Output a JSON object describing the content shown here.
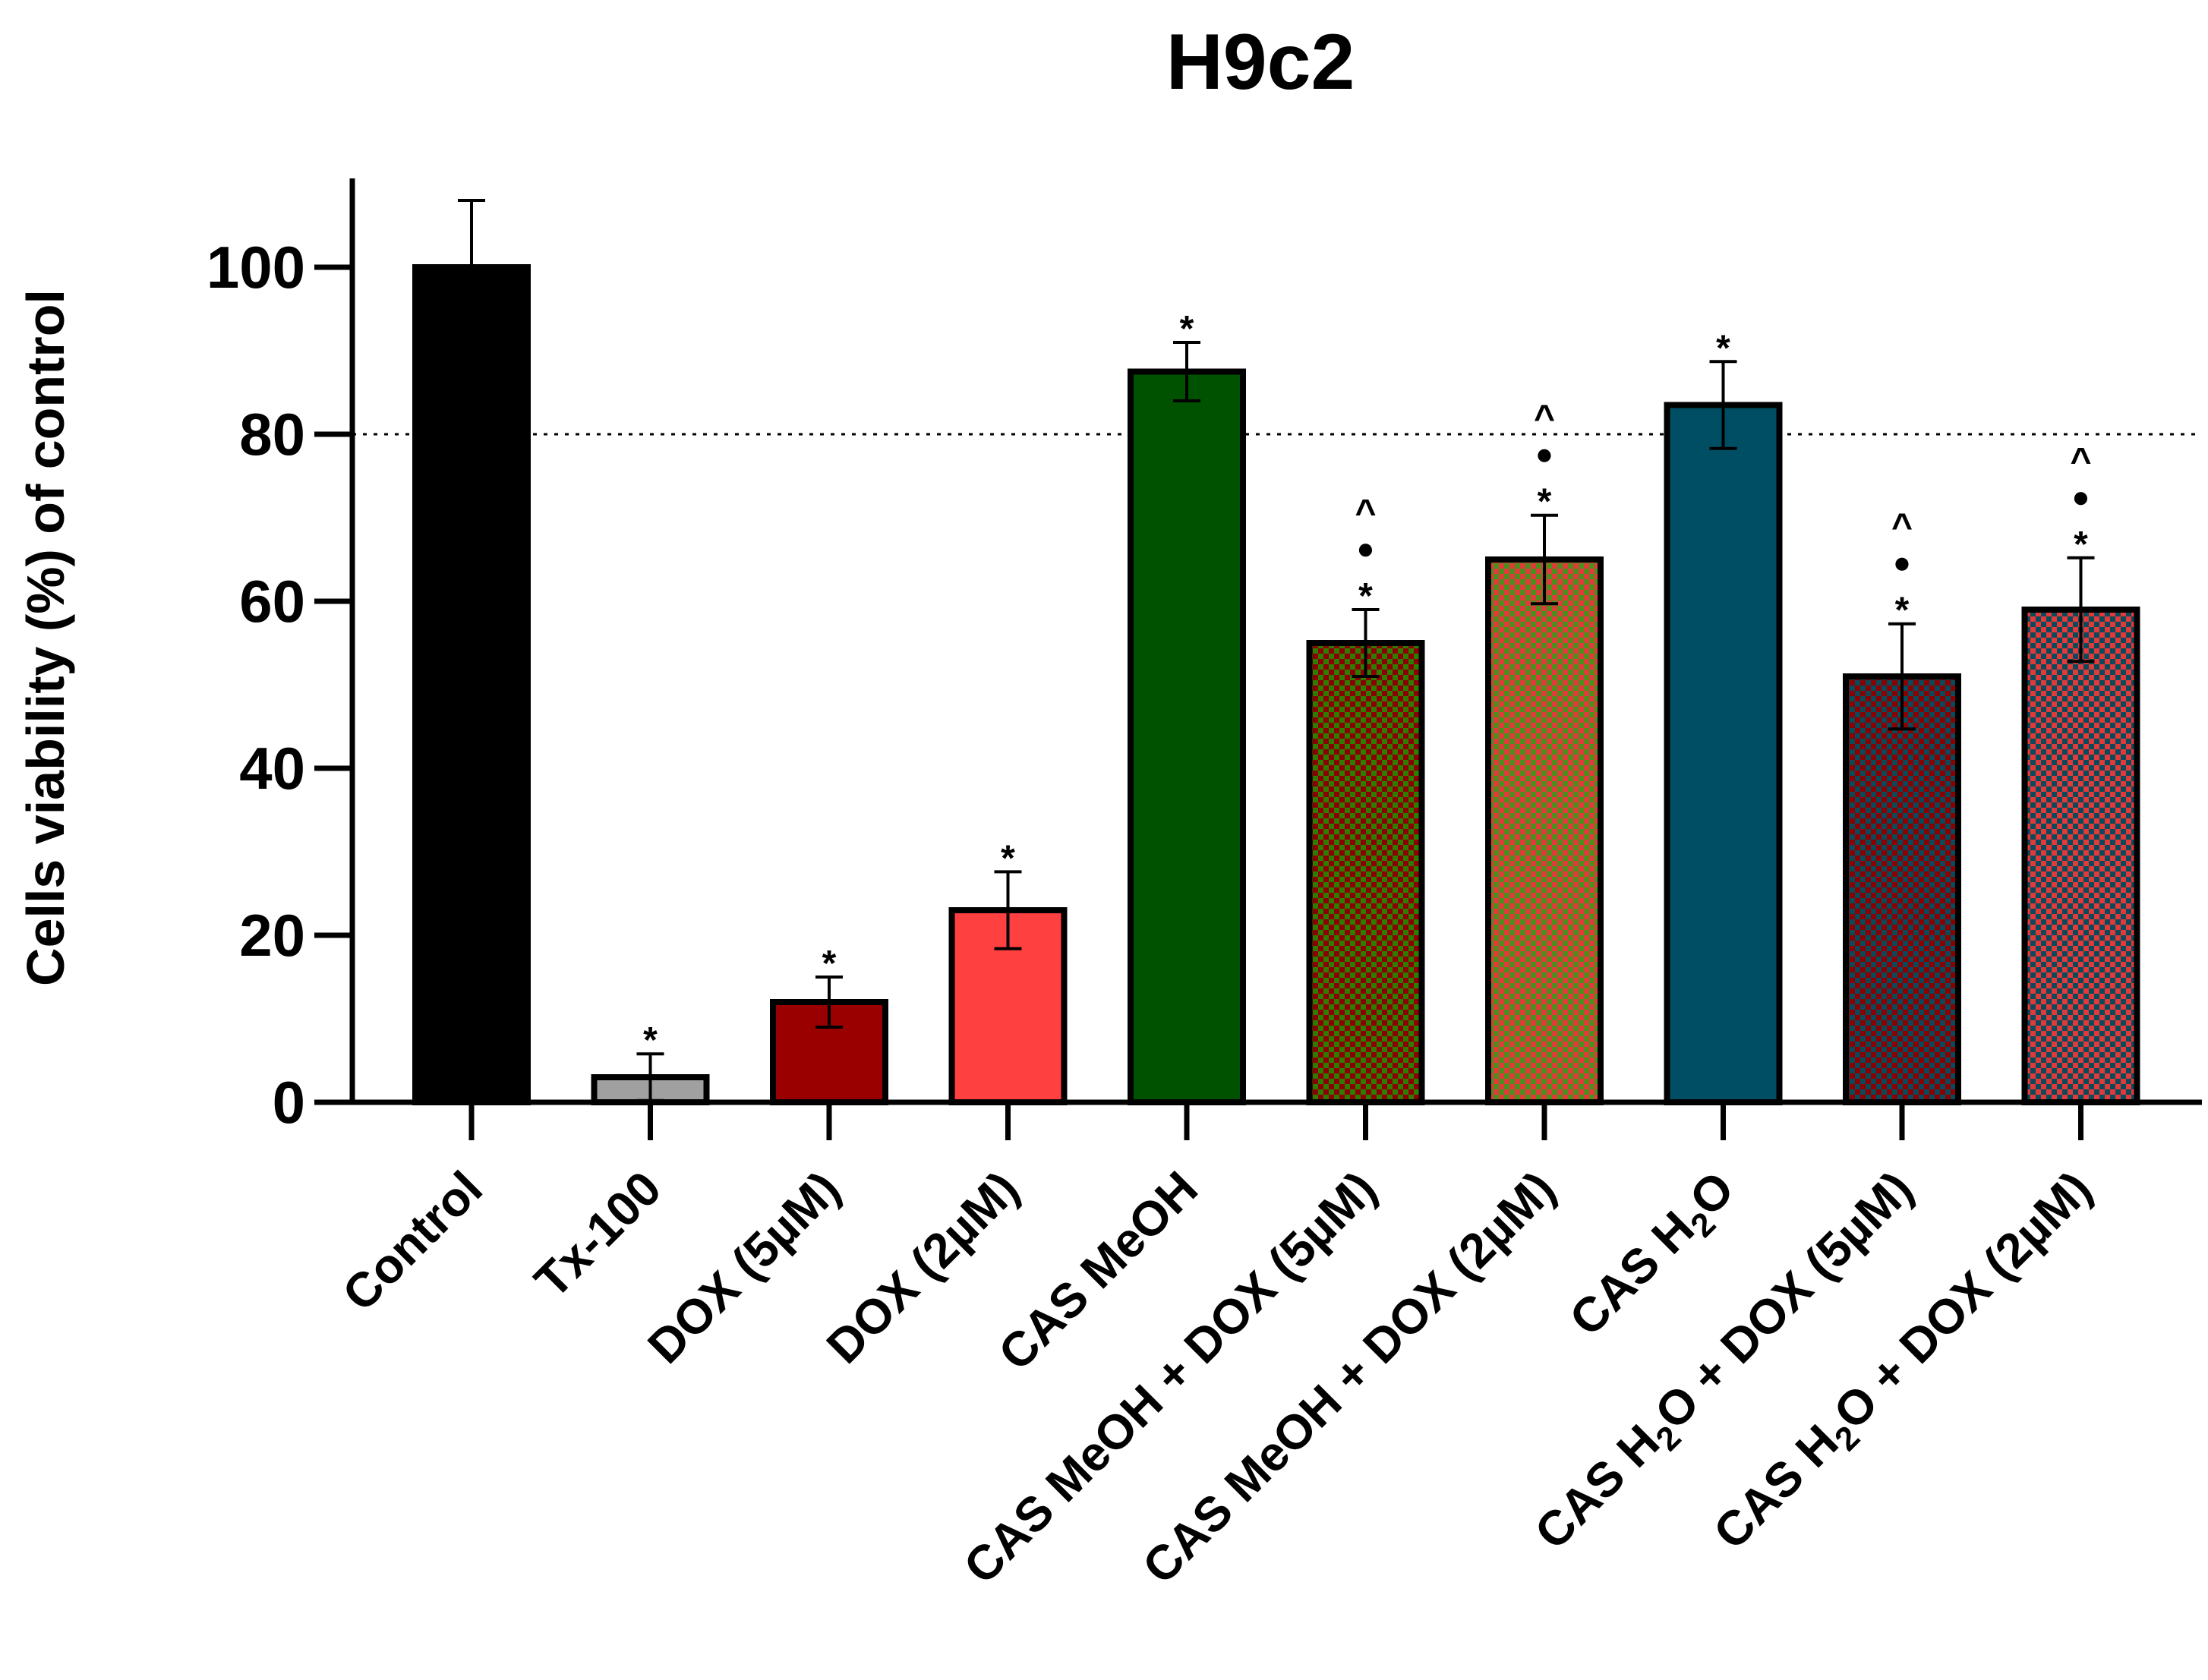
{
  "chart_data": {
    "type": "bar",
    "title": "H9c2",
    "xlabel": "",
    "ylabel": "Cells viability (%) of control",
    "ylim": [
      0,
      110
    ],
    "yticks": [
      0,
      20,
      40,
      60,
      80,
      100
    ],
    "reference_line": {
      "value": 80,
      "style": "dotted"
    },
    "categories": [
      {
        "label": "Control"
      },
      {
        "label": "Tx-100"
      },
      {
        "label": "DOX (5µM)"
      },
      {
        "label": "DOX (2µM)"
      },
      {
        "label": "CAS MeOH"
      },
      {
        "label": "CAS MeOH + DOX (5µM)"
      },
      {
        "label": "CAS MeOH + DOX (2µM)"
      },
      {
        "pre": "CAS H",
        "sub": "2",
        "post": "O"
      },
      {
        "pre": "CAS H",
        "sub": "2",
        "post": "O + DOX (5µM)"
      },
      {
        "pre": "CAS H",
        "sub": "2",
        "post": "O + DOX (2µM)"
      }
    ],
    "values": [
      100,
      3,
      12,
      23,
      87.5,
      55,
      65,
      83.5,
      51,
      59
    ],
    "errors": [
      8,
      2.8,
      3,
      4.6,
      3.5,
      4,
      5.3,
      5.2,
      6.3,
      6.2
    ],
    "error_display": [
      "up",
      "both",
      "both",
      "both",
      "both",
      "both",
      "both",
      "both",
      "both",
      "both"
    ],
    "fills": [
      {
        "type": "solid",
        "color": "#000000"
      },
      {
        "type": "solid",
        "color": "#a0a0a0"
      },
      {
        "type": "solid",
        "color": "#9b0000"
      },
      {
        "type": "solid",
        "color": "#ff4040"
      },
      {
        "type": "solid",
        "color": "#005100"
      },
      {
        "type": "checker",
        "colors": [
          "#8b0000",
          "#2e7d00"
        ]
      },
      {
        "type": "checker",
        "colors": [
          "#e03a3a",
          "#4c8f1c"
        ]
      },
      {
        "type": "solid",
        "color": "#004e63"
      },
      {
        "type": "checker",
        "colors": [
          "#8b0000",
          "#0a4a5a"
        ]
      },
      {
        "type": "checker",
        "colors": [
          "#e03a3a",
          "#0a4a5a"
        ]
      }
    ],
    "annotations": [
      [],
      [
        "*"
      ],
      [
        "*"
      ],
      [
        "*"
      ],
      [
        "*"
      ],
      [
        "*",
        "●",
        "^"
      ],
      [
        "*",
        "●",
        "^"
      ],
      [
        "*"
      ],
      [
        "*",
        "●",
        "^"
      ],
      [
        "*",
        "●",
        "^"
      ]
    ]
  }
}
